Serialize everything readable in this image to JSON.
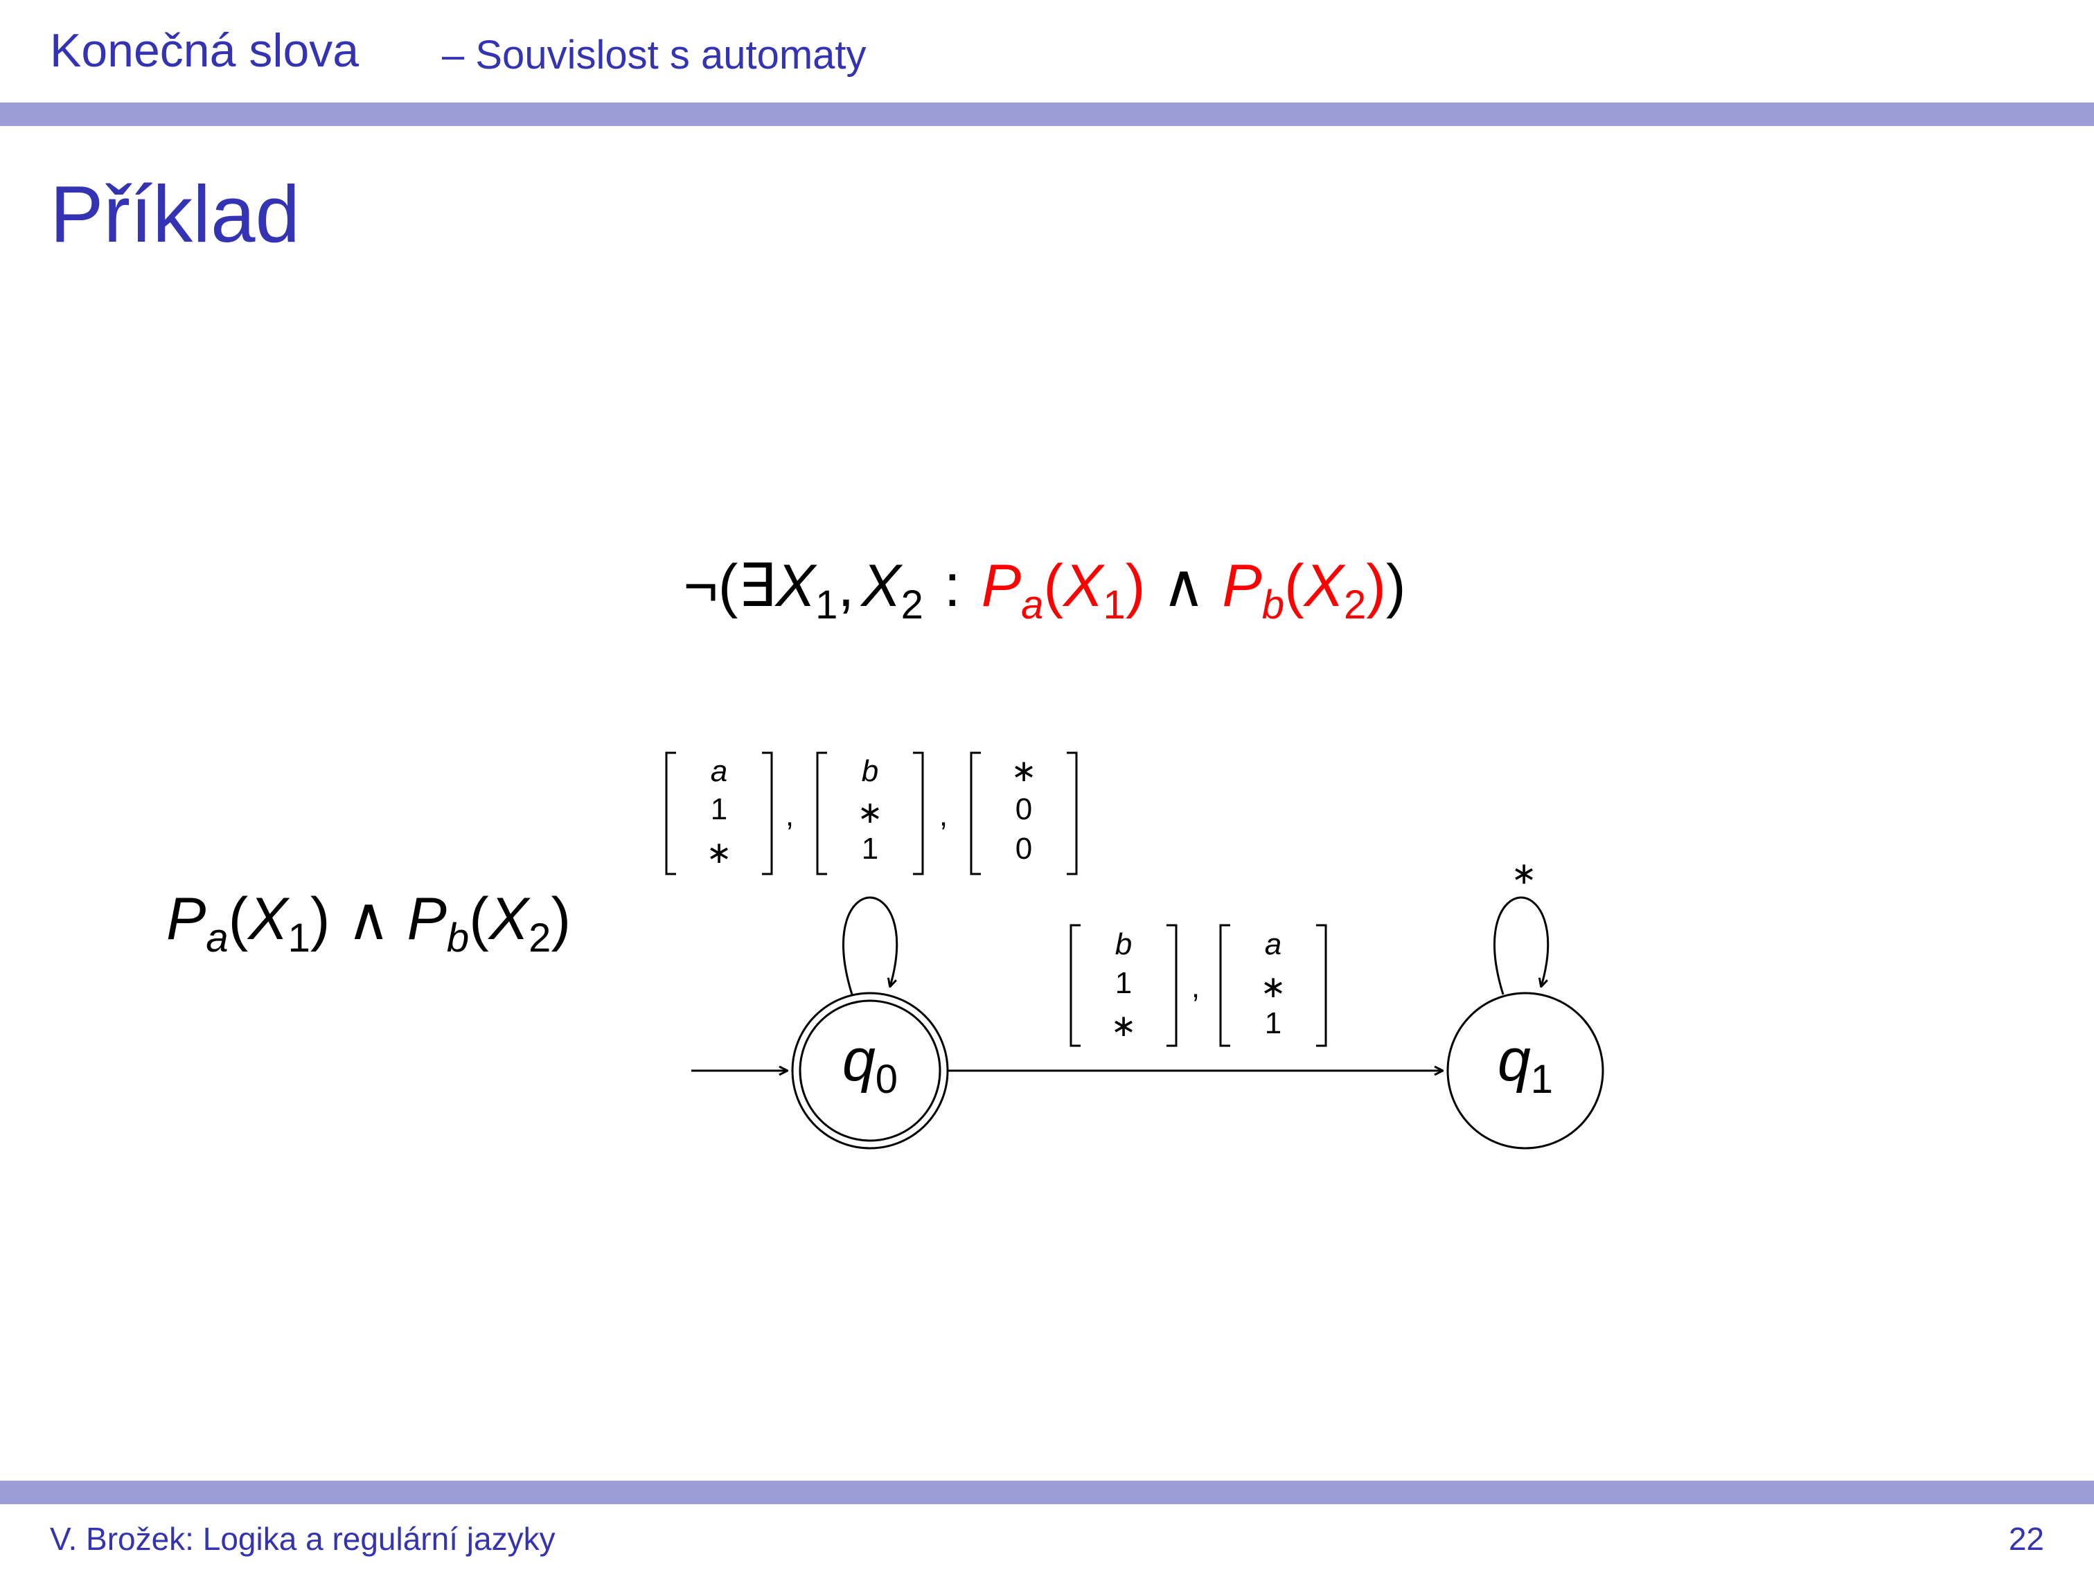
{
  "header": {
    "section": "Konečná slova",
    "subsection": "– Souvislost s automaty"
  },
  "frame": {
    "title": "Příklad"
  },
  "formula": {
    "neg": "¬(",
    "exists": "∃",
    "x1": "X",
    "sub1": "1",
    "comma": ",",
    "x2": "X",
    "sub2": "2",
    "colon": ":",
    "p": "P",
    "a": "a",
    "open": "(",
    "close": ")",
    "and": "∧",
    "b": "b",
    "closeAll": ")",
    "highlight_color": "#ff0000"
  },
  "left_formula": {
    "p": "P",
    "a": "a",
    "open": "(",
    "x": "X",
    "one": "1",
    "close": ")",
    "and": "∧",
    "b": "b",
    "two": "2"
  },
  "automaton": {
    "states": [
      {
        "label": "q",
        "sub": "0",
        "initial": true,
        "accepting": true
      },
      {
        "label": "q",
        "sub": "1",
        "initial": false,
        "accepting": false
      }
    ],
    "q0_loop_vectors": [
      [
        "a",
        "1",
        "∗"
      ],
      [
        "b",
        "∗",
        "1"
      ],
      [
        "∗",
        "0",
        "0"
      ]
    ],
    "transition_vectors": [
      [
        "b",
        "1",
        "∗"
      ],
      [
        "a",
        "∗",
        "1"
      ]
    ],
    "q1_loop_label": "∗",
    "separator": ","
  },
  "footer": {
    "author": "V. Brožek: Logika a regulární jazyky",
    "page": "22"
  }
}
